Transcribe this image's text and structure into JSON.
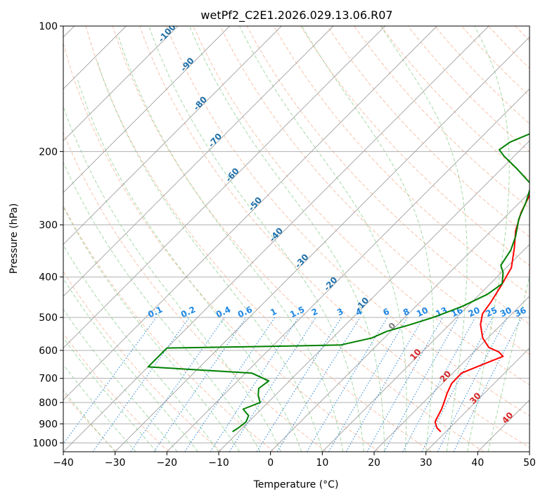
{
  "chart_data": {
    "type": "line",
    "subtype": "skew-t log-p sounding",
    "title": "wetPf2_C2E1.2026.029.13.06.R07",
    "xlabel": "Temperature (°C)",
    "ylabel": "Pressure (hPa)",
    "xlim": [
      -40,
      50
    ],
    "ylim": [
      1050,
      100
    ],
    "x_ticks": [
      -40,
      -30,
      -20,
      -10,
      0,
      10,
      20,
      30,
      40,
      50
    ],
    "x_tick_labels": [
      "−40",
      "−30",
      "−20",
      "−10",
      "0",
      "10",
      "20",
      "30",
      "40",
      "50"
    ],
    "y_ticks": [
      100,
      200,
      300,
      400,
      500,
      600,
      700,
      800,
      900,
      1000
    ],
    "y_tick_labels": [
      "100",
      "200",
      "300",
      "400",
      "500",
      "600",
      "700",
      "800",
      "900",
      "1000"
    ],
    "grid": true,
    "series": [
      {
        "name": "Temperature",
        "color": "#ff0000",
        "points": [
          [
            29,
            940
          ],
          [
            27.5,
            920
          ],
          [
            26,
            890
          ],
          [
            25.4,
            860
          ],
          [
            24.8,
            830
          ],
          [
            24,
            800
          ],
          [
            22.8,
            760
          ],
          [
            21.8,
            720
          ],
          [
            21.7,
            680
          ],
          [
            24,
            650
          ],
          [
            26.5,
            620
          ],
          [
            24.8,
            605
          ],
          [
            22,
            590
          ],
          [
            19,
            560
          ],
          [
            16,
            520
          ],
          [
            14.3,
            490
          ],
          [
            13.7,
            460
          ],
          [
            12.5,
            420
          ],
          [
            11,
            380
          ],
          [
            7.7,
            340
          ],
          [
            4.7,
            310
          ],
          [
            2.2,
            280
          ],
          [
            0.2,
            250
          ],
          [
            -0.6,
            235
          ],
          [
            0.8,
            222
          ],
          [
            4,
            212
          ],
          [
            6.4,
            200
          ],
          [
            6.9,
            190
          ],
          [
            5,
            180
          ],
          [
            3.6,
            165
          ],
          [
            3.8,
            150
          ],
          [
            3.1,
            140
          ],
          [
            2.2,
            130
          ],
          [
            3,
            120
          ],
          [
            5.5,
            112
          ],
          [
            7,
            105
          ],
          [
            8.8,
            100
          ]
        ]
      },
      {
        "name": "Dewpoint",
        "color": "#008000",
        "points": [
          [
            -11.2,
            940
          ],
          [
            -10.8,
            920
          ],
          [
            -10.5,
            890
          ],
          [
            -11.2,
            860
          ],
          [
            -13.5,
            830
          ],
          [
            -11.5,
            800
          ],
          [
            -13.2,
            770
          ],
          [
            -14.5,
            740
          ],
          [
            -14,
            710
          ],
          [
            -18.8,
            680
          ],
          [
            -40,
            657
          ],
          [
            -40,
            592
          ],
          [
            -15,
            585
          ],
          [
            -7,
            582
          ],
          [
            -2.4,
            560
          ],
          [
            -0.8,
            540
          ],
          [
            2.5,
            520
          ],
          [
            5.5,
            500
          ],
          [
            9,
            470
          ],
          [
            11.5,
            440
          ],
          [
            12.3,
            415
          ],
          [
            10.3,
            390
          ],
          [
            8.5,
            375
          ],
          [
            7.5,
            345
          ],
          [
            5.8,
            320
          ],
          [
            3,
            290
          ],
          [
            1.2,
            265
          ],
          [
            -1.2,
            240
          ],
          [
            -7,
            220
          ],
          [
            -12,
            205
          ],
          [
            -14.1,
            198
          ],
          [
            -13.5,
            190
          ],
          [
            -10.9,
            180
          ],
          [
            -10,
            170
          ],
          [
            -10,
            160
          ],
          [
            -9.6,
            150
          ],
          [
            -9.6,
            140
          ],
          [
            -9.5,
            130
          ],
          [
            -9.2,
            120
          ],
          [
            -9.2,
            112
          ],
          [
            -7.5,
            105
          ],
          [
            -6.4,
            100
          ]
        ]
      }
    ],
    "isotherm_labels": [
      {
        "t": -100,
        "p": 105,
        "text": "-100"
      },
      {
        "t": -90,
        "p": 125,
        "text": "-90"
      },
      {
        "t": -80,
        "p": 155,
        "text": "-80"
      },
      {
        "t": -70,
        "p": 190,
        "text": "-70"
      },
      {
        "t": -60,
        "p": 230,
        "text": "-60"
      },
      {
        "t": -50,
        "p": 270,
        "text": "-50"
      },
      {
        "t": -40,
        "p": 320,
        "text": "-40"
      },
      {
        "t": -30,
        "p": 370,
        "text": "-30"
      },
      {
        "t": -20,
        "p": 420,
        "text": "-20"
      },
      {
        "t": -10,
        "p": 470,
        "text": "-10"
      }
    ],
    "mixing_ratio_labels": [
      "0.1",
      "0.2",
      "0.4",
      "0.6",
      "1",
      "1.5",
      "2",
      "3",
      "4",
      "6",
      "8",
      "10",
      "13",
      "16",
      "20",
      "25",
      "30",
      "36"
    ],
    "mixing_ratio_values": [
      0.1,
      0.2,
      0.4,
      0.6,
      1,
      1.5,
      2,
      3,
      4,
      6,
      8,
      10,
      13,
      16,
      20,
      25,
      30,
      36
    ],
    "mixing_ratio_label_pressure": 500,
    "freezing_level_label": {
      "t": 0,
      "p": 530,
      "text": "0"
    },
    "theta_e_labels": [
      {
        "t": 10,
        "p": 620,
        "text": "10"
      },
      {
        "t": 20,
        "p": 700,
        "text": "20"
      },
      {
        "t": 30,
        "p": 790,
        "text": "30"
      },
      {
        "t": 40,
        "p": 880,
        "text": "40"
      }
    ]
  }
}
